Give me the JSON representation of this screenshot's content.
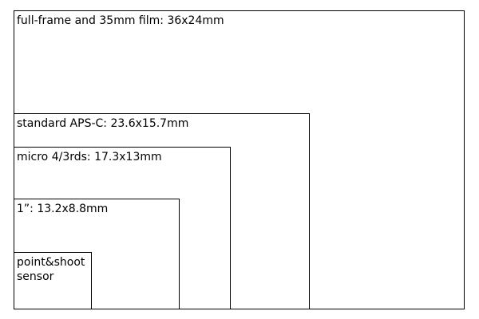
{
  "sensors": {
    "full_frame": {
      "label": "full-frame and 35mm film: 36x24mm"
    },
    "aps_c": {
      "label": "standard APS-C: 23.6x15.7mm"
    },
    "micro_four_thirds": {
      "label": "micro 4/3rds: 17.3x13mm"
    },
    "one_inch": {
      "label": "1”: 13.2x8.8mm"
    },
    "point_and_shoot": {
      "label": "point&shoot\nsensor"
    }
  },
  "colors": {
    "stroke": "#000000",
    "background": "#ffffff"
  }
}
